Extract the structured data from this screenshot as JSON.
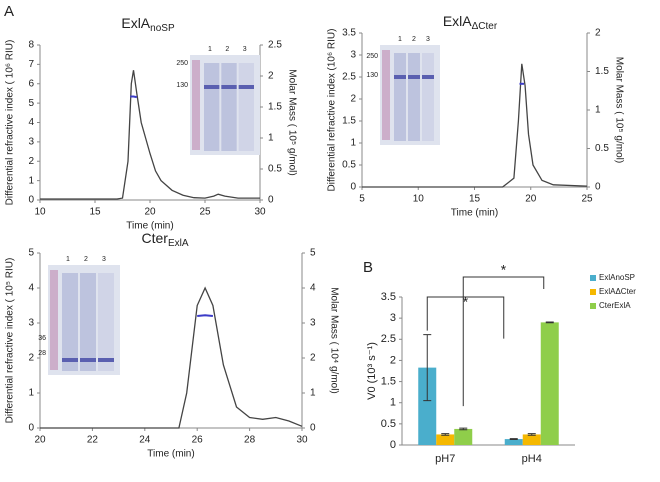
{
  "panel_labels": [
    "A",
    "B"
  ],
  "chart_data": [
    {
      "type": "line",
      "title": "ExlA",
      "title_subscript": "noSP",
      "xlabel": "Time (min)",
      "ylabel": "Differential refractive index ( 10⁶ RIU)",
      "y2label": "Molar Mass ( 10⁵ g/mol)",
      "xlim": [
        10,
        30
      ],
      "xticks": [
        10,
        15,
        20,
        25,
        30
      ],
      "ylim": [
        0,
        8
      ],
      "yticks": [
        0,
        1,
        2,
        3,
        4,
        5,
        6,
        7,
        8
      ],
      "y2lim": [
        0,
        2.5
      ],
      "y2ticks": [
        0,
        0.5,
        1,
        1.5,
        2,
        2.5
      ],
      "gel_markers": [
        "250",
        "130"
      ],
      "gel_lanes": [
        "1",
        "2",
        "3"
      ],
      "series": [
        {
          "color": "#444444",
          "x": [
            10,
            13,
            17,
            17.5,
            18,
            18.3,
            18.5,
            18.8,
            19.2,
            19.6,
            20,
            20.5,
            21,
            22,
            23,
            24,
            25,
            25.8,
            26.2,
            26.8,
            28,
            30
          ],
          "values": [
            0.05,
            0.05,
            0.05,
            0.1,
            2,
            6.0,
            6.7,
            5.5,
            4,
            3.2,
            2.4,
            1.5,
            1.0,
            0.5,
            0.25,
            0.12,
            0.1,
            0.2,
            0.3,
            0.2,
            0.1,
            0.1
          ]
        },
        {
          "color": "#3c3cc8",
          "axis": "y2",
          "x": [
            18.2,
            18.5,
            18.8
          ],
          "values": [
            1.67,
            1.67,
            1.66
          ]
        }
      ]
    },
    {
      "type": "line",
      "title": "ExlA",
      "title_subscript": "ΔCter",
      "xlabel": "Time (min)",
      "ylabel": "Differential refractive index (10⁶ RIU)",
      "y2label": "Molar Mass ( 10⁵ g/mol)",
      "xlim": [
        5,
        25
      ],
      "xticks": [
        5,
        10,
        15,
        20,
        25
      ],
      "ylim": [
        0,
        3.5
      ],
      "yticks": [
        0,
        0.5,
        1,
        1.5,
        2,
        2.5,
        3,
        3.5
      ],
      "y2lim": [
        0,
        2
      ],
      "y2ticks": [
        0,
        0.5,
        1,
        1.5,
        2
      ],
      "gel_markers": [
        "250",
        "130"
      ],
      "gel_lanes": [
        "1",
        "2",
        "3"
      ],
      "series": [
        {
          "color": "#444444",
          "x": [
            5,
            10,
            17.5,
            18.5,
            18.9,
            19.2,
            19.5,
            19.8,
            20.2,
            21,
            22,
            25
          ],
          "values": [
            0,
            0,
            0,
            0.2,
            1.5,
            2.8,
            2.3,
            1.2,
            0.5,
            0.15,
            0.05,
            0.02
          ]
        },
        {
          "color": "#3c3cc8",
          "axis": "y2",
          "x": [
            19.0,
            19.2,
            19.4
          ],
          "values": [
            1.34,
            1.34,
            1.34
          ]
        }
      ]
    },
    {
      "type": "line",
      "title": "Cter",
      "title_subscript": "ExlA",
      "xlabel": "Time (min)",
      "ylabel": "Differential refractive index ( 10⁵ RIU)",
      "y2label": "Molar Mass ( 10⁴ g/mol)",
      "xlim": [
        20,
        30
      ],
      "xticks": [
        20,
        22,
        24,
        26,
        28,
        30
      ],
      "ylim": [
        0,
        5
      ],
      "yticks": [
        0,
        1,
        2,
        3,
        4,
        5
      ],
      "y2lim": [
        0,
        5
      ],
      "y2ticks": [
        0,
        1,
        2,
        3,
        4,
        5
      ],
      "gel_markers": [
        "36",
        "28"
      ],
      "gel_lanes": [
        "1",
        "2",
        "3"
      ],
      "series": [
        {
          "color": "#444444",
          "x": [
            20,
            25.3,
            25.6,
            26,
            26.3,
            26.6,
            27,
            27.5,
            28,
            28.5,
            29,
            29.5,
            30
          ],
          "values": [
            0,
            0,
            1,
            3.5,
            4.0,
            3.5,
            1.8,
            0.6,
            0.3,
            0.25,
            0.3,
            0.2,
            0.05
          ]
        },
        {
          "color": "#3c3cc8",
          "axis": "y2",
          "x": [
            26.0,
            26.3,
            26.6
          ],
          "values": [
            3.2,
            3.22,
            3.2
          ]
        }
      ]
    },
    {
      "type": "bar",
      "ylabel": "V0 (10³ s⁻¹)",
      "categories": [
        "pH7",
        "pH4"
      ],
      "ylim": [
        0,
        3.5
      ],
      "yticks": [
        0,
        0.5,
        1,
        1.5,
        2,
        2.5,
        3,
        3.5
      ],
      "legend": "top-right",
      "annotations": [
        "*",
        "*"
      ],
      "series": [
        {
          "name": "ExlAnoSP",
          "color": "#4aaecc",
          "values": [
            1.83,
            0.14
          ],
          "errors": [
            0.78,
            0.01
          ]
        },
        {
          "name": "ExlAΔCter",
          "color": "#f5b800",
          "values": [
            0.25,
            0.25
          ],
          "errors": [
            0.02,
            0.02
          ]
        },
        {
          "name": "CterExlA",
          "color": "#8fce4a",
          "values": [
            0.38,
            2.9
          ],
          "errors": [
            0.02,
            0.01
          ]
        }
      ]
    }
  ]
}
